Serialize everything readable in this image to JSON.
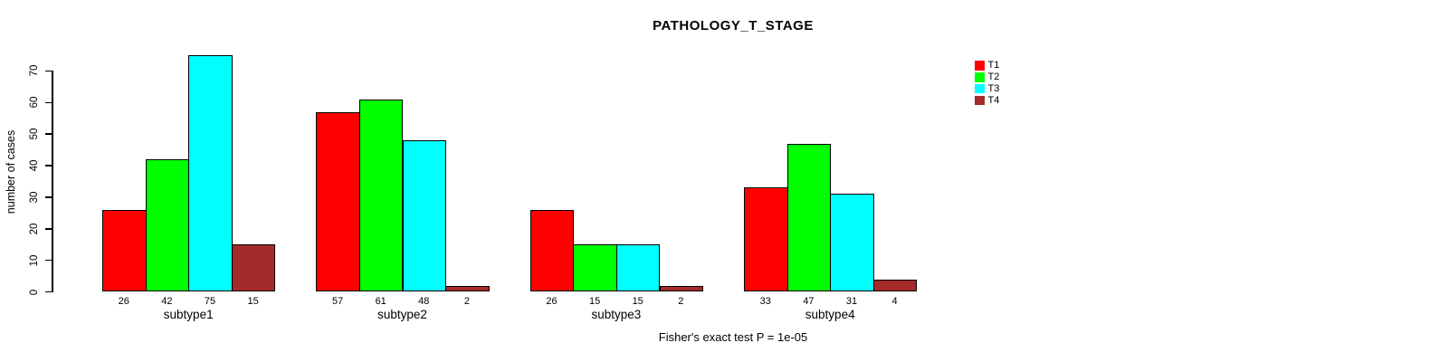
{
  "chart_data": {
    "type": "bar",
    "title": "PATHOLOGY_T_STAGE",
    "ylabel": "number of cases",
    "xlabel": "",
    "annotation": "Fisher's exact test P = 1e-05",
    "categories": [
      "subtype1",
      "subtype2",
      "subtype3",
      "subtype4"
    ],
    "series": [
      {
        "name": "T1",
        "color": "#ff0000",
        "values": [
          26,
          57,
          26,
          33
        ]
      },
      {
        "name": "T2",
        "color": "#00ff00",
        "values": [
          42,
          61,
          15,
          47
        ]
      },
      {
        "name": "T3",
        "color": "#00ffff",
        "values": [
          75,
          48,
          15,
          31
        ]
      },
      {
        "name": "T4",
        "color": "#a52a2a",
        "values": [
          15,
          2,
          2,
          4
        ]
      }
    ],
    "y_ticks": [
      0,
      10,
      20,
      30,
      40,
      50,
      60,
      70
    ],
    "ylim": [
      0,
      70
    ],
    "bar_value_labels": true,
    "grid": false,
    "legend_position": "top-right",
    "legend": [
      "T1",
      "T2",
      "T3",
      "T4"
    ]
  }
}
